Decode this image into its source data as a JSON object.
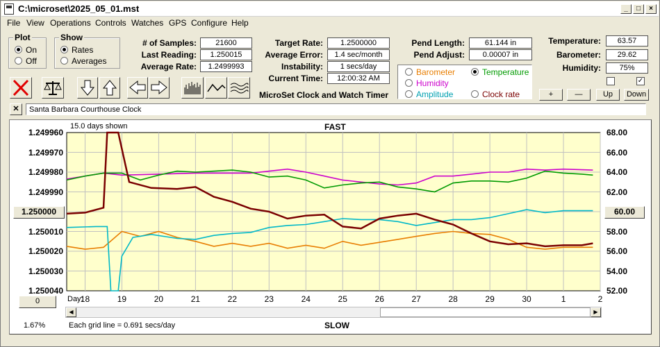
{
  "window": {
    "title": "C:\\microset\\2025_05_01.mst"
  },
  "menu": [
    "File",
    "View",
    "Operations",
    "Controls",
    "Watches",
    "GPS",
    "Configure",
    "Help"
  ],
  "plot_group": {
    "title": "Plot",
    "on": "On",
    "off": "Off",
    "selected": "on"
  },
  "show_group": {
    "title": "Show",
    "rates": "Rates",
    "averages": "Averages",
    "selected": "rates"
  },
  "stats": {
    "samples_label": "# of Samples:",
    "samples": "21600",
    "last_reading_label": "Last Reading:",
    "last_reading": "1.250015",
    "average_rate_label": "Average Rate:",
    "average_rate": "1.2499993"
  },
  "targets": {
    "target_rate_label": "Target Rate:",
    "target_rate": "1.2500000",
    "average_error_label": "Average Error:",
    "average_error": "1.4 sec/month",
    "instability_label": "Instability:",
    "instability": "1 secs/day",
    "current_time_label": "Current Time:",
    "current_time": "12:00:32 AM",
    "heading": "MicroSet Clock and Watch Timer"
  },
  "pend": {
    "length_label": "Pend Length:",
    "length": "61.144 in",
    "adjust_label": "Pend Adjust:",
    "adjust": "0.00007 in"
  },
  "env": {
    "temperature_label": "Temperature:",
    "temperature": "63.57",
    "barometer_label": "Barometer:",
    "barometer": "29.62",
    "humidity_label": "Humidity:",
    "humidity": "75%"
  },
  "series_select": {
    "barometer": "Barometer",
    "temperature": "Temperature",
    "humidity": "Humidity",
    "amplitude": "Amplitude",
    "clock_rate": "Clock rate",
    "selected": "temperature",
    "colors": {
      "barometer": "#e87d00",
      "temperature": "#009a00",
      "humidity": "#cc00cc",
      "amplitude": "#00a0b0",
      "clock_rate": "#7a0000"
    }
  },
  "scale_buttons": {
    "plus": "+",
    "minus": "—",
    "up": "Up",
    "down": "Down"
  },
  "clock_name": "Santa Barbara Courthouse Clock",
  "chart_labels": {
    "days_shown": "15.0 days shown",
    "top": "FAST",
    "bottom": "SLOW",
    "day_label": "Day:",
    "grid_note": "Each grid line = 0.691 secs/day",
    "percent": "1.67%",
    "left_value_box": "1.250000",
    "right_value_box": "60.00",
    "offset_box": "0"
  },
  "chart_data": {
    "type": "line",
    "x_ticks": [
      "18",
      "19",
      "20",
      "21",
      "22",
      "23",
      "24",
      "25",
      "26",
      "27",
      "28",
      "29",
      "30",
      "1",
      "2"
    ],
    "y_left_ticks": [
      "1.249960",
      "1.249970",
      "1.249980",
      "1.249990",
      "1.250000",
      "1.250010",
      "1.250020",
      "1.250030",
      "1.250040"
    ],
    "y_right_ticks": [
      "68.00",
      "66.00",
      "64.00",
      "62.00",
      "60.00",
      "58.00",
      "56.00",
      "54.00",
      "52.00"
    ],
    "x_range": [
      17.5,
      32.0
    ],
    "y_left_range": [
      1.24996,
      1.25004
    ],
    "y_right_range": [
      52,
      68
    ],
    "left_axis_inverted": true,
    "grid": true,
    "series": [
      {
        "name": "Clock rate",
        "color": "#7a0000",
        "x": [
          17.5,
          18.0,
          18.5,
          18.6,
          18.9,
          19.2,
          19.8,
          20.5,
          21.0,
          21.5,
          22.0,
          22.5,
          23.0,
          23.5,
          24.0,
          24.5,
          25.0,
          25.5,
          26.0,
          26.5,
          27.0,
          27.5,
          28.0,
          28.5,
          29.0,
          29.5,
          30.0,
          30.5,
          31.0,
          31.5,
          31.8
        ],
        "y": [
          59.8,
          59.9,
          60.4,
          68.0,
          68.0,
          63.0,
          62.4,
          62.3,
          62.5,
          61.5,
          61.0,
          60.3,
          60.0,
          59.3,
          59.6,
          59.7,
          58.5,
          58.3,
          59.3,
          59.6,
          59.8,
          59.2,
          58.7,
          57.8,
          57.0,
          56.7,
          56.8,
          56.5,
          56.6,
          56.6,
          56.8
        ]
      },
      {
        "name": "Temperature",
        "color": "#009a00",
        "x": [
          17.5,
          18.0,
          18.5,
          19.0,
          19.5,
          20.0,
          20.5,
          21.0,
          21.5,
          22.0,
          22.5,
          23.0,
          23.5,
          24.0,
          24.5,
          25.0,
          25.5,
          26.0,
          26.5,
          27.0,
          27.5,
          28.0,
          28.5,
          29.0,
          29.5,
          30.0,
          30.5,
          31.0,
          31.5,
          31.8
        ],
        "y": [
          63.2,
          63.6,
          63.9,
          63.9,
          63.2,
          63.7,
          64.1,
          64.0,
          64.1,
          64.2,
          64.0,
          63.5,
          63.6,
          63.2,
          62.4,
          62.7,
          62.9,
          63.0,
          62.5,
          62.3,
          62.0,
          62.9,
          63.1,
          63.1,
          63.0,
          63.4,
          64.1,
          63.9,
          63.8,
          63.7
        ]
      },
      {
        "name": "Humidity",
        "color": "#cc00cc",
        "x": [
          17.5,
          18.5,
          19.0,
          20.0,
          21.0,
          22.0,
          22.5,
          23.0,
          23.5,
          24.0,
          24.5,
          25.0,
          25.5,
          26.0,
          26.5,
          27.0,
          27.5,
          28.0,
          28.5,
          29.0,
          29.5,
          30.0,
          30.5,
          31.0,
          31.8
        ],
        "y": [
          63.3,
          63.9,
          63.7,
          63.8,
          63.9,
          63.9,
          63.9,
          64.1,
          64.3,
          64.0,
          63.6,
          63.2,
          63.0,
          62.8,
          62.7,
          62.9,
          63.6,
          63.6,
          63.8,
          64.0,
          64.0,
          64.3,
          64.2,
          64.3,
          64.2
        ]
      },
      {
        "name": "Amplitude",
        "color": "#00b8c8",
        "x": [
          17.5,
          18.3,
          18.6,
          18.7,
          18.9,
          19.0,
          19.3,
          19.8,
          20.5,
          21.0,
          21.5,
          22.0,
          22.5,
          23.0,
          23.5,
          24.0,
          24.5,
          25.0,
          25.5,
          26.0,
          26.5,
          27.0,
          27.5,
          28.0,
          28.5,
          29.0,
          29.5,
          30.0,
          30.5,
          31.0,
          31.8
        ],
        "y": [
          58.4,
          58.5,
          58.5,
          52.0,
          52.0,
          55.5,
          57.4,
          57.7,
          57.3,
          57.2,
          57.6,
          57.8,
          57.9,
          58.4,
          58.6,
          58.7,
          59.0,
          59.3,
          59.2,
          59.2,
          59.0,
          58.6,
          58.9,
          59.2,
          59.2,
          59.4,
          59.8,
          60.2,
          59.9,
          60.1,
          60.1
        ]
      },
      {
        "name": "Barometer",
        "color": "#e87d00",
        "x": [
          17.5,
          18.0,
          18.5,
          19.0,
          19.5,
          20.0,
          20.5,
          21.0,
          21.5,
          22.0,
          22.5,
          23.0,
          23.5,
          24.0,
          24.5,
          25.0,
          25.5,
          26.0,
          26.5,
          27.0,
          27.5,
          28.0,
          28.5,
          29.0,
          29.5,
          30.0,
          30.5,
          31.0,
          31.8
        ],
        "y": [
          56.5,
          56.2,
          56.4,
          58.0,
          57.5,
          58.0,
          57.4,
          57.0,
          56.5,
          56.8,
          56.5,
          56.8,
          56.3,
          56.6,
          56.3,
          57.0,
          56.6,
          56.9,
          57.2,
          57.5,
          57.8,
          58.0,
          57.8,
          57.7,
          57.2,
          56.4,
          56.2,
          56.4,
          56.4
        ]
      }
    ]
  }
}
